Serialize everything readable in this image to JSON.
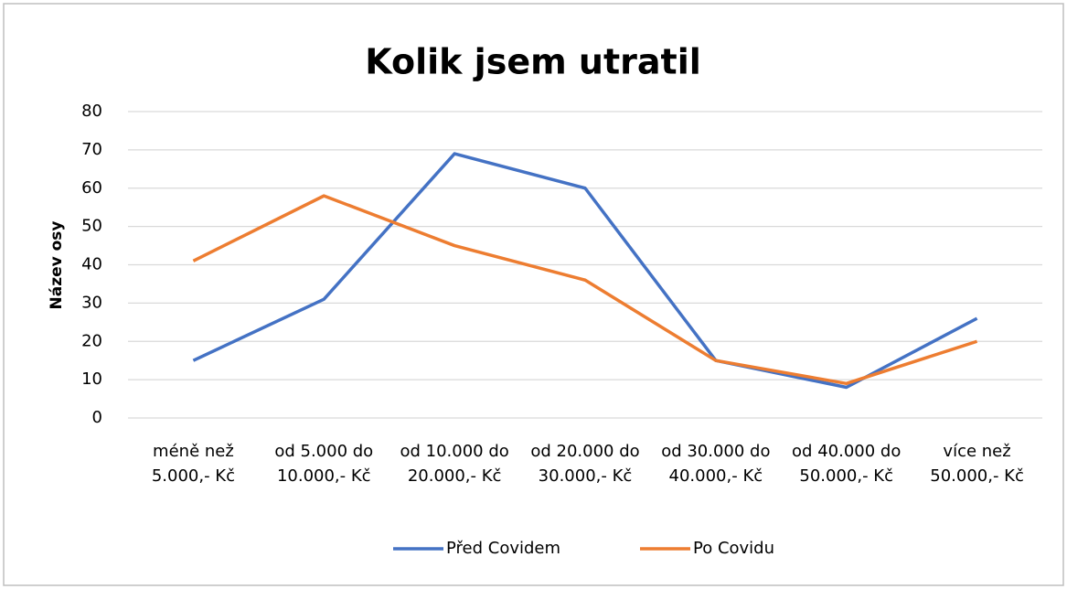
{
  "chart_data": {
    "type": "line",
    "title": "Kolik jsem utratil",
    "y_label": "Název osy",
    "categories": [
      "méně než 5.000,- Kč",
      "od 5.000 do 10.000,- Kč",
      "od 10.000 do 20.000,- Kč",
      "od 20.000 do 30.000,- Kč",
      "od 30.000 do 40.000,- Kč",
      "od 40.000 do 50.000,- Kč",
      "více než 50.000,- Kč"
    ],
    "series": [
      {
        "name": "Před Covidem",
        "color": "#4472c4",
        "values": [
          15,
          31,
          69,
          60,
          15,
          8,
          26
        ]
      },
      {
        "name": "Po Covidu",
        "color": "#ed7d31",
        "values": [
          41,
          58,
          45,
          36,
          15,
          9,
          20
        ]
      }
    ],
    "ylim": [
      0,
      80
    ],
    "yticks": [
      0,
      10,
      20,
      30,
      40,
      50,
      60,
      70,
      80
    ],
    "grid": true,
    "legend": "bottom"
  }
}
